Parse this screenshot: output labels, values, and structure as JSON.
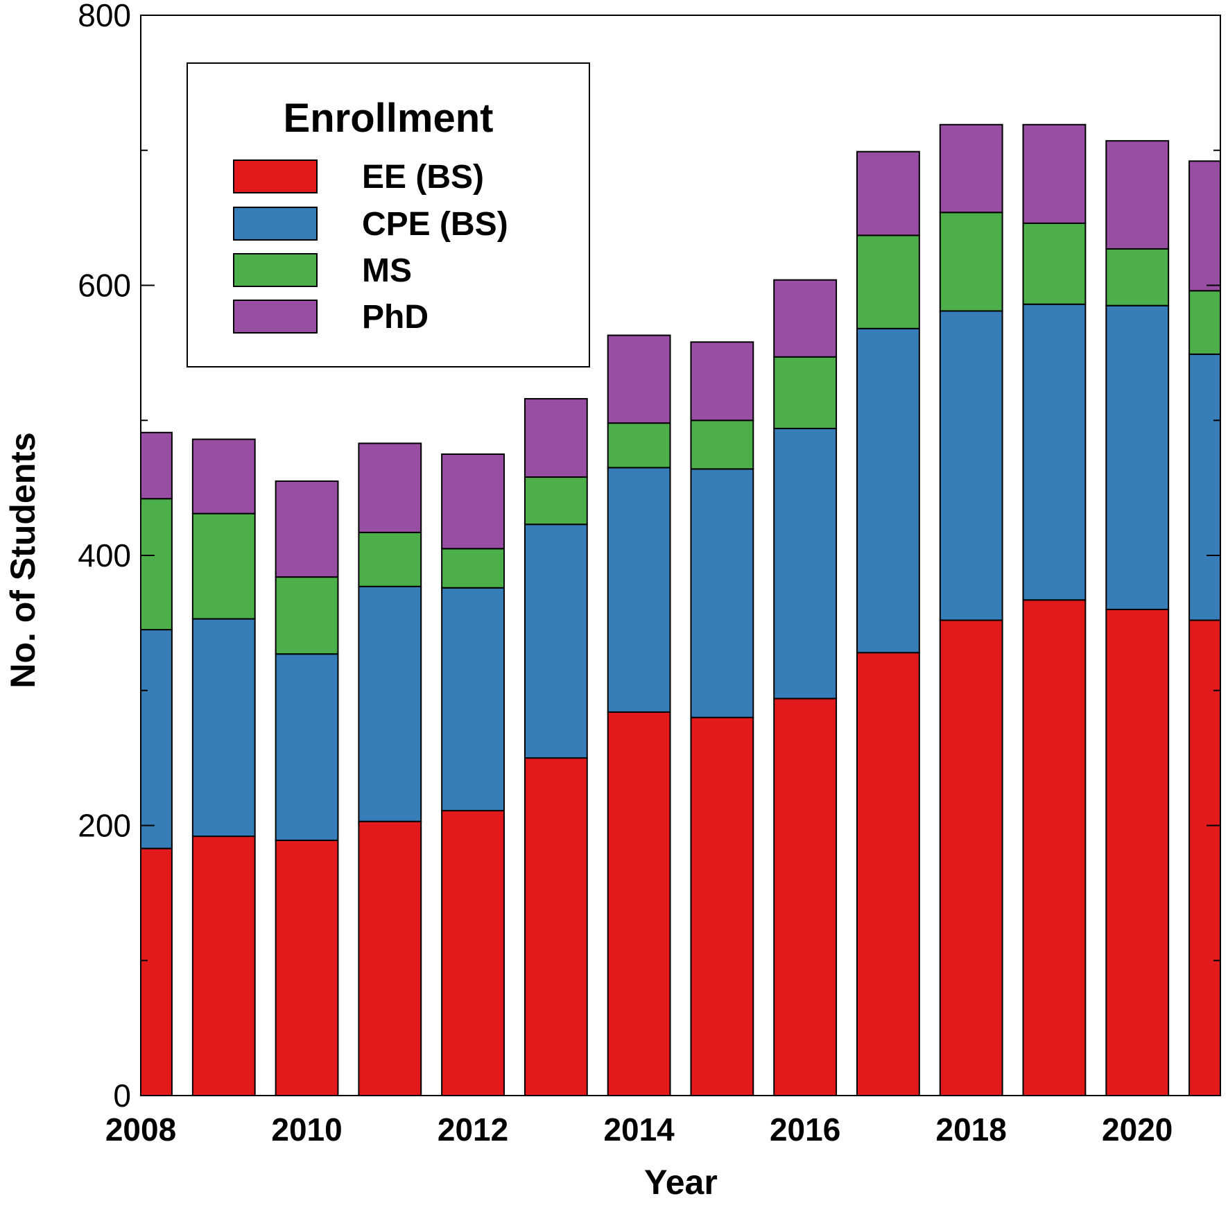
{
  "chart_data": {
    "type": "bar",
    "stacked": true,
    "xlabel": "Year",
    "ylabel": "No. of Students",
    "ylim": [
      0,
      800
    ],
    "xlim": [
      2008,
      2021
    ],
    "y_ticks": [
      "0",
      "200",
      "400",
      "600",
      "800"
    ],
    "x_ticks": [
      "2008",
      "2010",
      "2012",
      "2014",
      "2016",
      "2018",
      "2020"
    ],
    "grid": false,
    "legend": {
      "title": "Enrollment",
      "position": "top-left"
    },
    "categories": [
      "2008",
      "2009",
      "2010",
      "2011",
      "2012",
      "2013",
      "2014",
      "2015",
      "2016",
      "2017",
      "2018",
      "2019",
      "2020",
      "2021"
    ],
    "series": [
      {
        "name": "EE (BS)",
        "color": "#e31a1c",
        "values": [
          183,
          192,
          189,
          203,
          211,
          250,
          284,
          280,
          294,
          328,
          352,
          367,
          360,
          352
        ]
      },
      {
        "name": "CPE (BS)",
        "color": "#377eb8",
        "values": [
          162,
          161,
          138,
          174,
          165,
          173,
          181,
          184,
          200,
          240,
          229,
          219,
          225,
          197
        ]
      },
      {
        "name": "MS",
        "color": "#4daf4a",
        "values": [
          97,
          78,
          57,
          40,
          29,
          35,
          33,
          36,
          53,
          69,
          73,
          60,
          42,
          47
        ]
      },
      {
        "name": "PhD",
        "color": "#984ea3",
        "values": [
          49,
          55,
          71,
          66,
          70,
          58,
          65,
          58,
          57,
          62,
          65,
          73,
          80,
          96
        ]
      }
    ]
  }
}
